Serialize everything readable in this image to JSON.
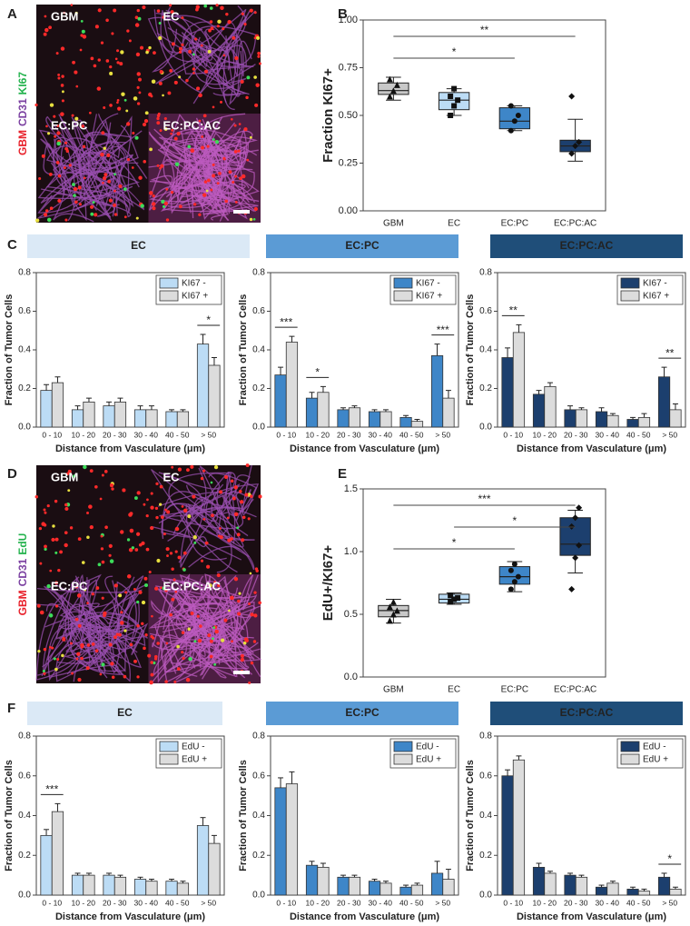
{
  "panel_labels": [
    "A",
    "B",
    "C",
    "D",
    "E",
    "F"
  ],
  "micrographs": [
    {
      "channels": [
        {
          "name": "GBM",
          "color": "#e8202a"
        },
        {
          "name": "CD31",
          "color": "#7a3fa0"
        },
        {
          "name": "KI67",
          "color": "#22b24c"
        }
      ],
      "quadrants": [
        "GBM",
        "EC",
        "EC:PC",
        "EC:PC:AC"
      ]
    },
    {
      "channels": [
        {
          "name": "GBM",
          "color": "#e8202a"
        },
        {
          "name": "CD31",
          "color": "#7a3fa0"
        },
        {
          "name": "EdU",
          "color": "#22b24c"
        }
      ],
      "quadrants": [
        "GBM",
        "EC",
        "EC:PC",
        "EC:PC:AC"
      ]
    }
  ],
  "chart_data": [
    {
      "type": "box",
      "ylabel": "Fraction KI67+",
      "categories": [
        "GBM",
        "EC",
        "EC:PC",
        "EC:PC:AC"
      ],
      "ylim": [
        0,
        1
      ],
      "yticks": [
        {
          "value": 0,
          "label": "0.00"
        },
        {
          "value": 0.25,
          "label": "0.25"
        },
        {
          "value": 0.5,
          "label": "0.50"
        },
        {
          "value": 0.75,
          "label": "0.75"
        },
        {
          "value": 1,
          "label": "1.00"
        }
      ],
      "boxes": [
        {
          "color": "#c8c8c8",
          "marker": "triangle",
          "q1": 0.61,
          "median": 0.63,
          "q3": 0.67,
          "whisker_low": 0.58,
          "whisker_high": 0.7,
          "points": [
            0.6,
            0.63,
            0.66,
            0.69
          ]
        },
        {
          "color": "#bcdcf5",
          "marker": "square",
          "q1": 0.53,
          "median": 0.58,
          "q3": 0.62,
          "whisker_low": 0.5,
          "whisker_high": 0.64,
          "points": [
            0.5,
            0.55,
            0.58,
            0.6,
            0.64
          ]
        },
        {
          "color": "#3e86c8",
          "marker": "circle",
          "q1": 0.43,
          "median": 0.47,
          "q3": 0.54,
          "whisker_low": 0.42,
          "whisker_high": 0.55,
          "points": [
            0.42,
            0.47,
            0.5,
            0.55
          ]
        },
        {
          "color": "#1c3f6e",
          "marker": "diamond",
          "q1": 0.31,
          "median": 0.34,
          "q3": 0.37,
          "whisker_low": 0.26,
          "whisker_high": 0.48,
          "points": [
            0.3,
            0.34,
            0.36,
            0.6
          ]
        }
      ],
      "annotations": [
        {
          "text": "**",
          "from": "GBM",
          "to": "EC:PC:AC"
        },
        {
          "text": "*",
          "from": "GBM",
          "to": "EC:PC"
        }
      ]
    },
    {
      "type": "bar",
      "title": "EC",
      "header_color": "#dbe9f6",
      "ylabel": "Fraction of Tumor Cells",
      "xlabel": "Distance from Vasculature (μm)",
      "categories": [
        "0 - 10",
        "10 - 20",
        "20 - 30",
        "30 - 40",
        "40 - 50",
        "> 50"
      ],
      "ylim": [
        0,
        0.8
      ],
      "yticks": [
        {
          "value": 0,
          "label": "0.0"
        },
        {
          "value": 0.2,
          "label": "0.2"
        },
        {
          "value": 0.4,
          "label": "0.4"
        },
        {
          "value": 0.6,
          "label": "0.6"
        },
        {
          "value": 0.8,
          "label": "0.8"
        }
      ],
      "legend": "upper right",
      "series": [
        {
          "name": "KI67 -",
          "color": "#bcdcf5",
          "values": [
            0.19,
            0.09,
            0.11,
            0.09,
            0.08,
            0.43
          ],
          "errors": [
            0.03,
            0.02,
            0.02,
            0.02,
            0.01,
            0.05
          ]
        },
        {
          "name": "KI67 +",
          "color": "#dcdcdc",
          "values": [
            0.23,
            0.13,
            0.13,
            0.09,
            0.08,
            0.32
          ],
          "errors": [
            0.03,
            0.02,
            0.02,
            0.02,
            0.01,
            0.04
          ]
        }
      ],
      "annotations": [
        {
          "text": "*",
          "category": "> 50"
        }
      ]
    },
    {
      "type": "bar",
      "title": "EC:PC",
      "header_color": "#5b9bd5",
      "ylabel": "Fraction of Tumor Cells",
      "xlabel": "Distance from Vasculature (μm)",
      "categories": [
        "0 - 10",
        "10 - 20",
        "20 - 30",
        "30 - 40",
        "40 - 50",
        "> 50"
      ],
      "ylim": [
        0,
        0.8
      ],
      "yticks": [
        {
          "value": 0,
          "label": "0.0"
        },
        {
          "value": 0.2,
          "label": "0.2"
        },
        {
          "value": 0.4,
          "label": "0.4"
        },
        {
          "value": 0.6,
          "label": "0.6"
        },
        {
          "value": 0.8,
          "label": "0.8"
        }
      ],
      "legend": "upper right",
      "series": [
        {
          "name": "KI67 -",
          "color": "#3e86c8",
          "values": [
            0.27,
            0.15,
            0.09,
            0.08,
            0.05,
            0.37
          ],
          "errors": [
            0.04,
            0.03,
            0.01,
            0.01,
            0.01,
            0.06
          ]
        },
        {
          "name": "KI67 +",
          "color": "#dcdcdc",
          "values": [
            0.44,
            0.18,
            0.1,
            0.08,
            0.03,
            0.15
          ],
          "errors": [
            0.03,
            0.03,
            0.01,
            0.01,
            0.01,
            0.04
          ]
        }
      ],
      "annotations": [
        {
          "text": "***",
          "category": "0 - 10"
        },
        {
          "text": "*",
          "category": "10 - 20"
        },
        {
          "text": "***",
          "category": "> 50"
        }
      ]
    },
    {
      "type": "bar",
      "title": "EC:PC:AC",
      "header_color": "#1f4e79",
      "ylabel": "Fraction of Tumor Cells",
      "xlabel": "Distance from Vasculature (μm)",
      "categories": [
        "0 - 10",
        "10 - 20",
        "20 - 30",
        "30 - 40",
        "40 - 50",
        "> 50"
      ],
      "ylim": [
        0,
        0.8
      ],
      "yticks": [
        {
          "value": 0,
          "label": "0.0"
        },
        {
          "value": 0.2,
          "label": "0.2"
        },
        {
          "value": 0.4,
          "label": "0.4"
        },
        {
          "value": 0.6,
          "label": "0.6"
        },
        {
          "value": 0.8,
          "label": "0.8"
        }
      ],
      "legend": "upper right",
      "series": [
        {
          "name": "KI67 -",
          "color": "#1c3f6e",
          "values": [
            0.36,
            0.17,
            0.09,
            0.08,
            0.04,
            0.26
          ],
          "errors": [
            0.05,
            0.02,
            0.02,
            0.02,
            0.01,
            0.05
          ]
        },
        {
          "name": "KI67 +",
          "color": "#dcdcdc",
          "values": [
            0.49,
            0.21,
            0.09,
            0.06,
            0.05,
            0.09
          ],
          "errors": [
            0.04,
            0.02,
            0.01,
            0.01,
            0.02,
            0.03
          ]
        }
      ],
      "annotations": [
        {
          "text": "**",
          "category": "0 - 10"
        },
        {
          "text": "**",
          "category": "> 50"
        }
      ]
    },
    {
      "type": "box",
      "ylabel": "EdU+/KI67+",
      "categories": [
        "GBM",
        "EC",
        "EC:PC",
        "EC:PC:AC"
      ],
      "ylim": [
        0,
        1.5
      ],
      "yticks": [
        {
          "value": 0,
          "label": "0.0"
        },
        {
          "value": 0.5,
          "label": "0.5"
        },
        {
          "value": 1,
          "label": "1.0"
        },
        {
          "value": 1.5,
          "label": "1.5"
        }
      ],
      "boxes": [
        {
          "color": "#c8c8c8",
          "marker": "triangle",
          "q1": 0.48,
          "median": 0.53,
          "q3": 0.57,
          "whisker_low": 0.43,
          "whisker_high": 0.62,
          "points": [
            0.45,
            0.5,
            0.53,
            0.56,
            0.6
          ]
        },
        {
          "color": "#bcdcf5",
          "marker": "square",
          "q1": 0.59,
          "median": 0.62,
          "q3": 0.66,
          "whisker_low": 0.58,
          "whisker_high": 0.67,
          "points": [
            0.6,
            0.62,
            0.63,
            0.65
          ]
        },
        {
          "color": "#3e86c8",
          "marker": "circle",
          "q1": 0.74,
          "median": 0.8,
          "q3": 0.88,
          "whisker_low": 0.68,
          "whisker_high": 0.92,
          "points": [
            0.7,
            0.76,
            0.8,
            0.85,
            0.9
          ]
        },
        {
          "color": "#1c3f6e",
          "marker": "diamond",
          "q1": 0.97,
          "median": 1.06,
          "q3": 1.27,
          "whisker_low": 0.83,
          "whisker_high": 1.33,
          "points": [
            0.7,
            0.95,
            1.05,
            1.2,
            1.27,
            1.35
          ]
        }
      ],
      "annotations": [
        {
          "text": "***",
          "from": "GBM",
          "to": "EC:PC:AC"
        },
        {
          "text": "*",
          "from": "EC",
          "to": "EC:PC:AC"
        },
        {
          "text": "*",
          "from": "GBM",
          "to": "EC:PC"
        }
      ]
    },
    {
      "type": "bar",
      "title": "EC",
      "header_color": "#dbe9f6",
      "ylabel": "Fraction of Tumor Cells",
      "xlabel": "Distance from Vasculature (μm)",
      "categories": [
        "0 - 10",
        "10 - 20",
        "20 - 30",
        "30 - 40",
        "40 - 50",
        "> 50"
      ],
      "ylim": [
        0,
        0.8
      ],
      "yticks": [
        {
          "value": 0,
          "label": "0.0"
        },
        {
          "value": 0.2,
          "label": "0.2"
        },
        {
          "value": 0.4,
          "label": "0.4"
        },
        {
          "value": 0.6,
          "label": "0.6"
        },
        {
          "value": 0.8,
          "label": "0.8"
        }
      ],
      "legend": "upper right",
      "series": [
        {
          "name": "EdU -",
          "color": "#bcdcf5",
          "values": [
            0.3,
            0.1,
            0.1,
            0.08,
            0.07,
            0.35
          ],
          "errors": [
            0.03,
            0.01,
            0.01,
            0.01,
            0.01,
            0.04
          ]
        },
        {
          "name": "EdU +",
          "color": "#dcdcdc",
          "values": [
            0.42,
            0.1,
            0.09,
            0.07,
            0.06,
            0.26
          ],
          "errors": [
            0.04,
            0.01,
            0.01,
            0.01,
            0.01,
            0.04
          ]
        }
      ],
      "annotations": [
        {
          "text": "***",
          "category": "0 - 10"
        }
      ]
    },
    {
      "type": "bar",
      "title": "EC:PC",
      "header_color": "#5b9bd5",
      "ylabel": "Fraction of Tumor Cells",
      "xlabel": "Distance from Vasculature (μm)",
      "categories": [
        "0 - 10",
        "10 - 20",
        "20 - 30",
        "30 - 40",
        "40 - 50",
        "> 50"
      ],
      "ylim": [
        0,
        0.8
      ],
      "yticks": [
        {
          "value": 0,
          "label": "0.0"
        },
        {
          "value": 0.2,
          "label": "0.2"
        },
        {
          "value": 0.4,
          "label": "0.4"
        },
        {
          "value": 0.6,
          "label": "0.6"
        },
        {
          "value": 0.8,
          "label": "0.8"
        }
      ],
      "legend": "upper right",
      "series": [
        {
          "name": "EdU -",
          "color": "#3e86c8",
          "values": [
            0.54,
            0.15,
            0.09,
            0.07,
            0.04,
            0.11
          ],
          "errors": [
            0.05,
            0.02,
            0.01,
            0.01,
            0.01,
            0.06
          ]
        },
        {
          "name": "EdU +",
          "color": "#dcdcdc",
          "values": [
            0.56,
            0.14,
            0.09,
            0.06,
            0.05,
            0.08
          ],
          "errors": [
            0.06,
            0.02,
            0.01,
            0.01,
            0.01,
            0.05
          ]
        }
      ],
      "annotations": []
    },
    {
      "type": "bar",
      "title": "EC:PC:AC",
      "header_color": "#1f4e79",
      "ylabel": "Fraction of Tumor Cells",
      "xlabel": "Distance from Vasculature (μm)",
      "categories": [
        "0 - 10",
        "10 - 20",
        "20 - 30",
        "30 - 40",
        "40 - 50",
        "> 50"
      ],
      "ylim": [
        0,
        0.8
      ],
      "yticks": [
        {
          "value": 0,
          "label": "0.0"
        },
        {
          "value": 0.2,
          "label": "0.2"
        },
        {
          "value": 0.4,
          "label": "0.4"
        },
        {
          "value": 0.6,
          "label": "0.6"
        },
        {
          "value": 0.8,
          "label": "0.8"
        }
      ],
      "legend": "upper right",
      "series": [
        {
          "name": "EdU -",
          "color": "#1c3f6e",
          "values": [
            0.6,
            0.14,
            0.1,
            0.04,
            0.03,
            0.09
          ],
          "errors": [
            0.03,
            0.02,
            0.01,
            0.01,
            0.01,
            0.02
          ]
        },
        {
          "name": "EdU +",
          "color": "#dcdcdc",
          "values": [
            0.68,
            0.11,
            0.09,
            0.06,
            0.02,
            0.03
          ],
          "errors": [
            0.02,
            0.01,
            0.01,
            0.01,
            0.01,
            0.01
          ]
        }
      ],
      "annotations": [
        {
          "text": "*",
          "category": "> 50"
        }
      ]
    }
  ]
}
